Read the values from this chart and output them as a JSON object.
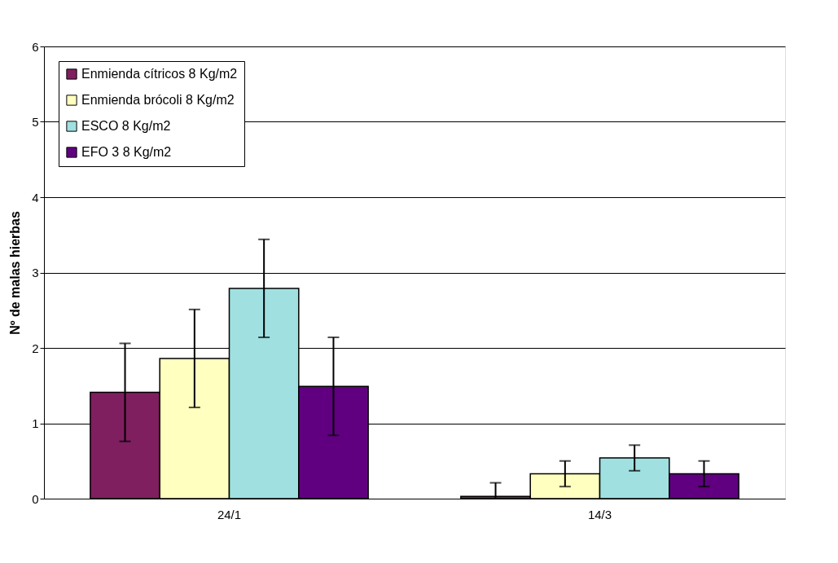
{
  "chart_data": {
    "type": "bar",
    "ylabel": "Nº de malas hierbas",
    "categories": [
      "24/1",
      "14/3"
    ],
    "series": [
      {
        "name": "Enmienda cítricos 8 Kg/m2",
        "color": "#7f1f5f",
        "values": [
          1.41,
          0.03
        ],
        "errors": [
          0.65,
          [
            0,
            0.21
          ]
        ]
      },
      {
        "name": "Enmienda brócoli 8 Kg/m2",
        "color": "#ffffc0",
        "values": [
          1.86,
          0.33
        ],
        "errors": [
          0.65,
          0.17
        ]
      },
      {
        "name": "ESCO  8 Kg/m2",
        "color": "#a0e0e0",
        "values": [
          2.79,
          0.54
        ],
        "errors": [
          0.65,
          0.17
        ]
      },
      {
        "name": "EFO 3  8 Kg/m2",
        "color": "#600080",
        "values": [
          1.49,
          0.33
        ],
        "errors": [
          0.65,
          0.17
        ]
      }
    ],
    "ylim": [
      0,
      6
    ],
    "yticks": [
      0,
      1,
      2,
      3,
      4,
      5,
      6
    ],
    "grid": "y",
    "legend": "top left"
  }
}
